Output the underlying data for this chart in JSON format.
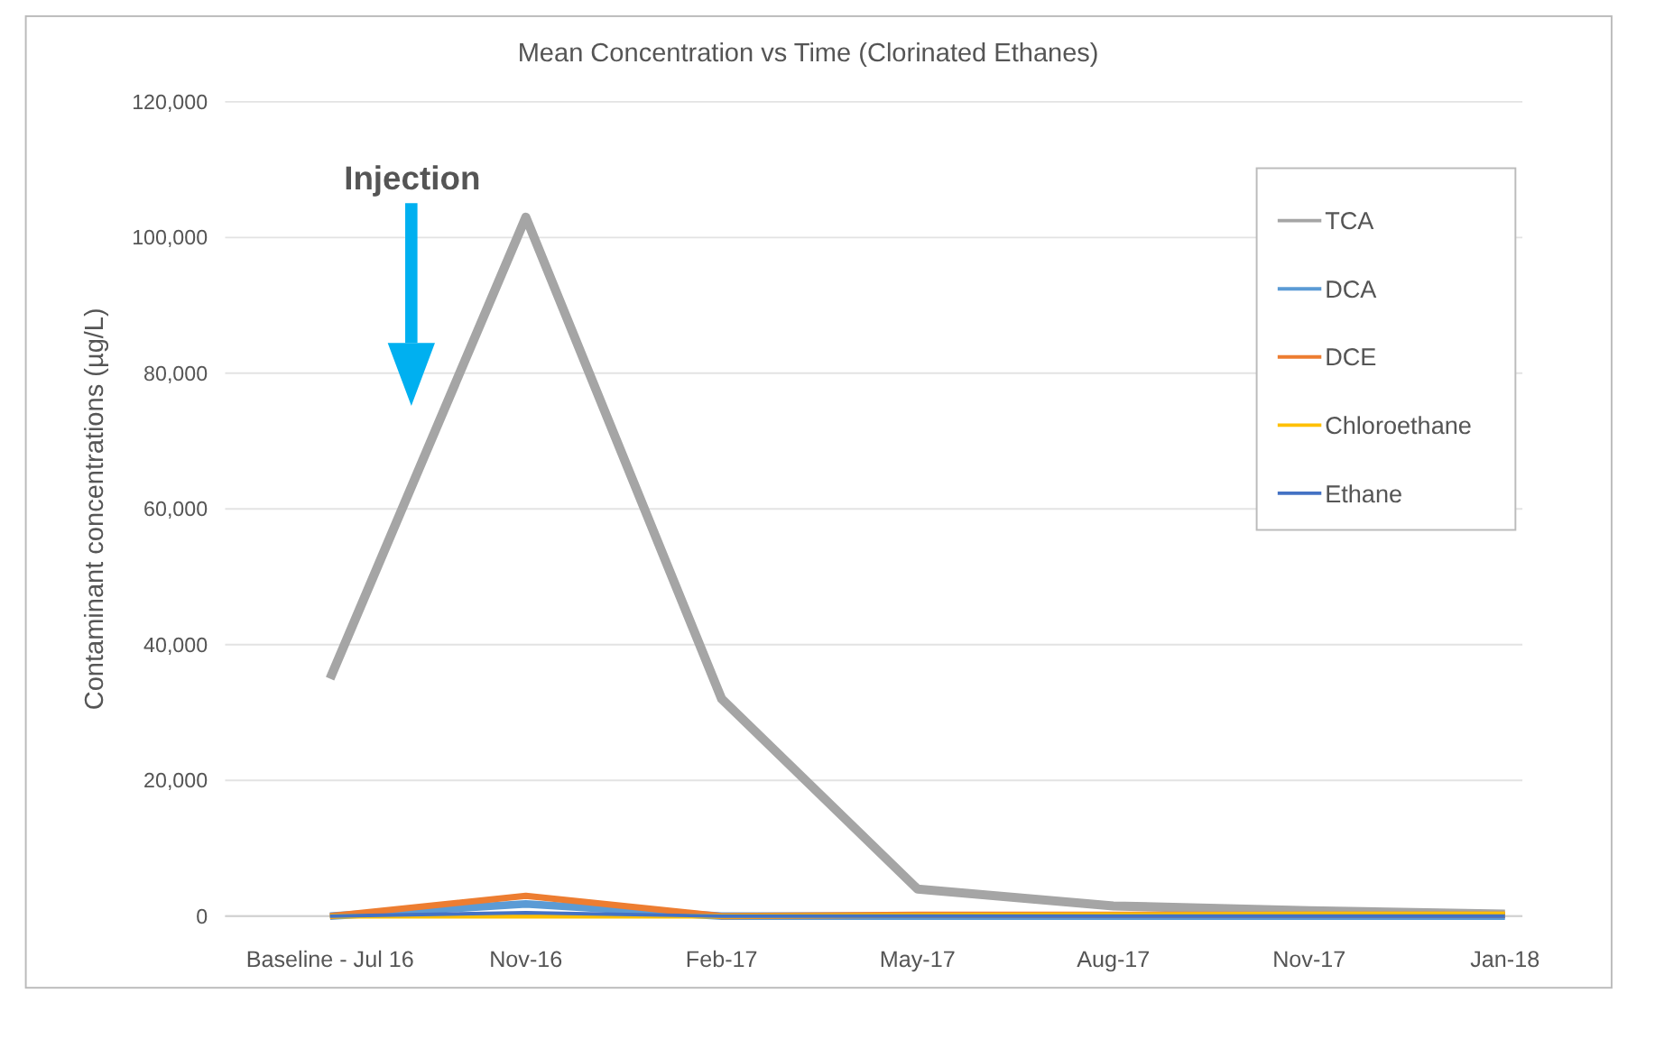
{
  "chart_data": {
    "type": "line",
    "title": "Mean Concentration vs Time (Clorinated Ethanes)",
    "ylabel": "Contaminant concentrations (µg/L)",
    "categories": [
      "Baseline - Jul 16",
      "Nov-16",
      "Feb-17",
      "May-17",
      "Aug-17",
      "Nov-17",
      "Jan-18"
    ],
    "series": [
      {
        "name": "TCA",
        "color": "#a5a5a5",
        "values": [
          35000,
          103000,
          32000,
          4000,
          1500,
          800,
          300
        ]
      },
      {
        "name": "DCA",
        "color": "#5b9bd5",
        "values": [
          0,
          1800,
          0,
          0,
          0,
          0,
          0
        ]
      },
      {
        "name": "DCE",
        "color": "#ed7d31",
        "values": [
          0,
          3000,
          0,
          200,
          200,
          200,
          200
        ]
      },
      {
        "name": "Chloroethane",
        "color": "#ffc000",
        "values": [
          0,
          0,
          0,
          100,
          200,
          300,
          300
        ]
      },
      {
        "name": "Ethane",
        "color": "#4472c4",
        "values": [
          0,
          500,
          0,
          0,
          0,
          0,
          0
        ]
      }
    ],
    "ylim": [
      0,
      120000
    ],
    "yticks": [
      {
        "value": 0,
        "label": "0"
      },
      {
        "value": 20000,
        "label": "20,000"
      },
      {
        "value": 40000,
        "label": "40,000"
      },
      {
        "value": 60000,
        "label": "60,000"
      },
      {
        "value": 80000,
        "label": "80,000"
      },
      {
        "value": 100000,
        "label": "100,000"
      },
      {
        "value": 120000,
        "label": "120,000"
      }
    ],
    "grid": "y",
    "legend": "top right",
    "annotations": [
      "Injection"
    ]
  }
}
